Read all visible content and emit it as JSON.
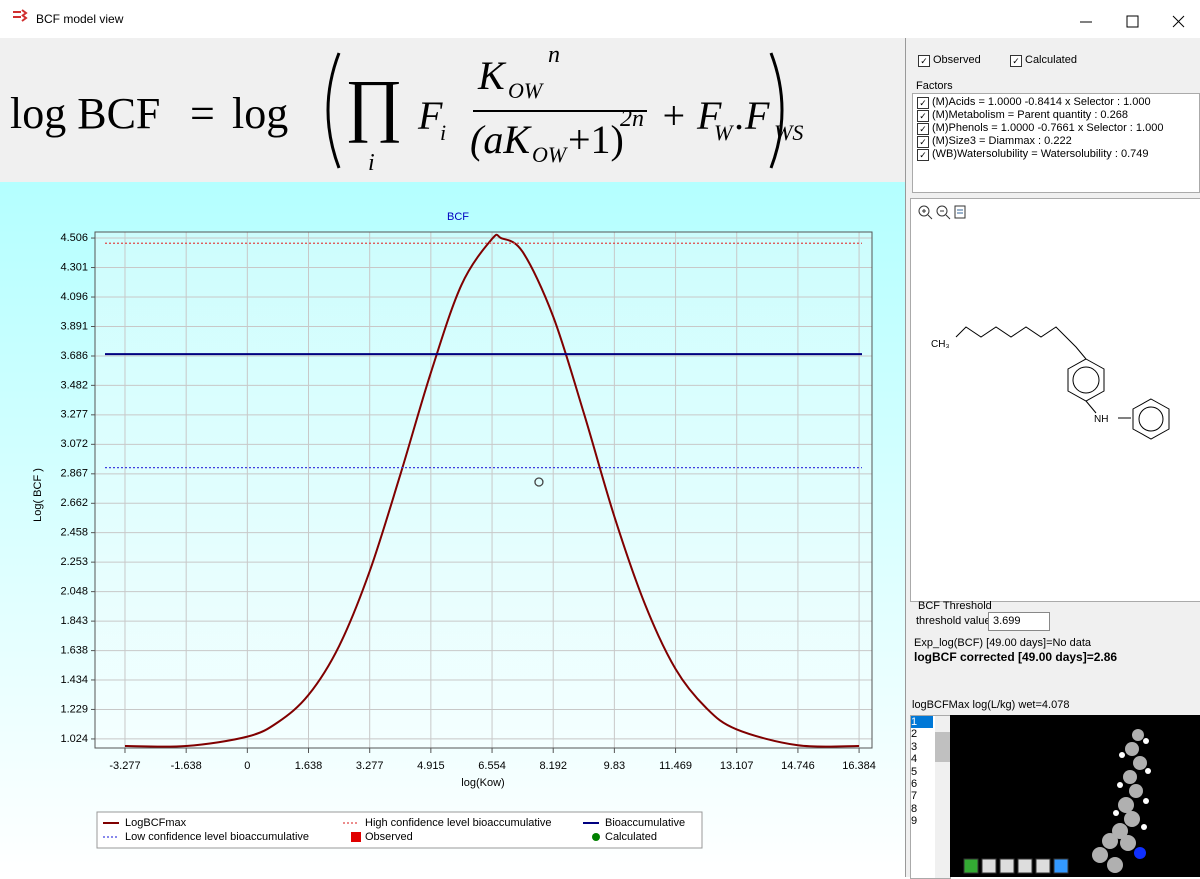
{
  "window": {
    "title": "BCF model view"
  },
  "formula": {
    "lhs": "log BCF",
    "eq": "=",
    "log": "log",
    "prod": "∏",
    "prod_index": "i",
    "f": "F",
    "f_sub": "i",
    "num": "K",
    "num_sub": "OW",
    "num_sup": "n",
    "den": "(aK",
    "den_sub": "OW",
    "den_tail": "+1)",
    "den_sup": "2n",
    "plus": "+ F",
    "fw_sub": "W",
    "dot": ".F",
    "fws_sub": "WS"
  },
  "chart_data": {
    "type": "line",
    "title": "BCF",
    "x_label": "log(Kow)",
    "y_label": "Log( BCF )",
    "xlim": [
      -4.08,
      16.73
    ],
    "ylim": [
      0.961,
      4.548
    ],
    "xticks": [
      -3.277,
      -1.638,
      0,
      1.638,
      3.277,
      4.915,
      6.554,
      8.192,
      9.83,
      11.469,
      13.107,
      14.746,
      16.384
    ],
    "yticks": [
      1.024,
      1.229,
      1.434,
      1.638,
      1.843,
      2.048,
      2.253,
      2.458,
      2.662,
      2.867,
      3.072,
      3.277,
      3.482,
      3.686,
      3.891,
      4.096,
      4.301,
      4.506
    ],
    "grid": true,
    "series": [
      {
        "name": "LogBCFmax",
        "color": "#800000",
        "marker": "line",
        "x": [
          -3.277,
          -1.638,
          0,
          0.819,
          1.638,
          2.458,
          3.277,
          4.096,
          4.915,
          5.735,
          6.554,
          6.8,
          7.373,
          8.192,
          9.011,
          9.83,
          10.65,
          11.469,
          12.288,
          13.107,
          14.746,
          16.384
        ],
        "values": [
          0.975,
          0.975,
          1.04,
          1.14,
          1.33,
          1.67,
          2.19,
          2.86,
          3.57,
          4.18,
          4.5,
          4.505,
          4.41,
          3.96,
          3.29,
          2.57,
          1.96,
          1.51,
          1.24,
          1.09,
          0.98,
          0.975
        ]
      },
      {
        "name": "High confidence level bioaccumulative",
        "color": "#e04848",
        "marker": "dash",
        "value": 4.47
      },
      {
        "name": "Bioaccumulative",
        "color": "#000080",
        "marker": "line",
        "value": 3.699
      },
      {
        "name": "Low confidence level bioaccumulative",
        "color": "#4040e0",
        "marker": "dash",
        "value": 2.91
      },
      {
        "name": "Observed",
        "color": "#e00000",
        "marker": "square",
        "x": [],
        "values": []
      },
      {
        "name": "Calculated",
        "color": "#008000",
        "marker": "circle",
        "point_color": "#444444",
        "x": [
          7.81
        ],
        "values": [
          2.81
        ]
      }
    ]
  },
  "panel": {
    "checks": [
      "Observed",
      "Calculated"
    ],
    "factors_label": "Factors",
    "factors": [
      "(M)Acids = 1.0000 -0.8414 x Selector : 1.000",
      "(M)Metabolism = Parent quantity : 0.268",
      "(M)Phenols = 1.0000 -0.7661 x Selector : 1.000",
      "(M)Size3 = Diammax : 0.222",
      "(WB)Watersolubility = Watersolubility : 0.749"
    ],
    "atoms": [
      "CH₃",
      "NH"
    ],
    "threshold_group": "BCF Threshold",
    "threshold_label": "threshold value",
    "threshold_value": "3.699",
    "exp_text": "Exp_log(BCF) [49.00 days]=No data",
    "corrected_text": "logBCF corrected [49.00 days]=2.86",
    "max_text": "logBCFMax  log(L/kg) wet=4.078",
    "list": [
      "1",
      "2",
      "3",
      "4",
      "5",
      "6",
      "7",
      "8",
      "9"
    ]
  }
}
